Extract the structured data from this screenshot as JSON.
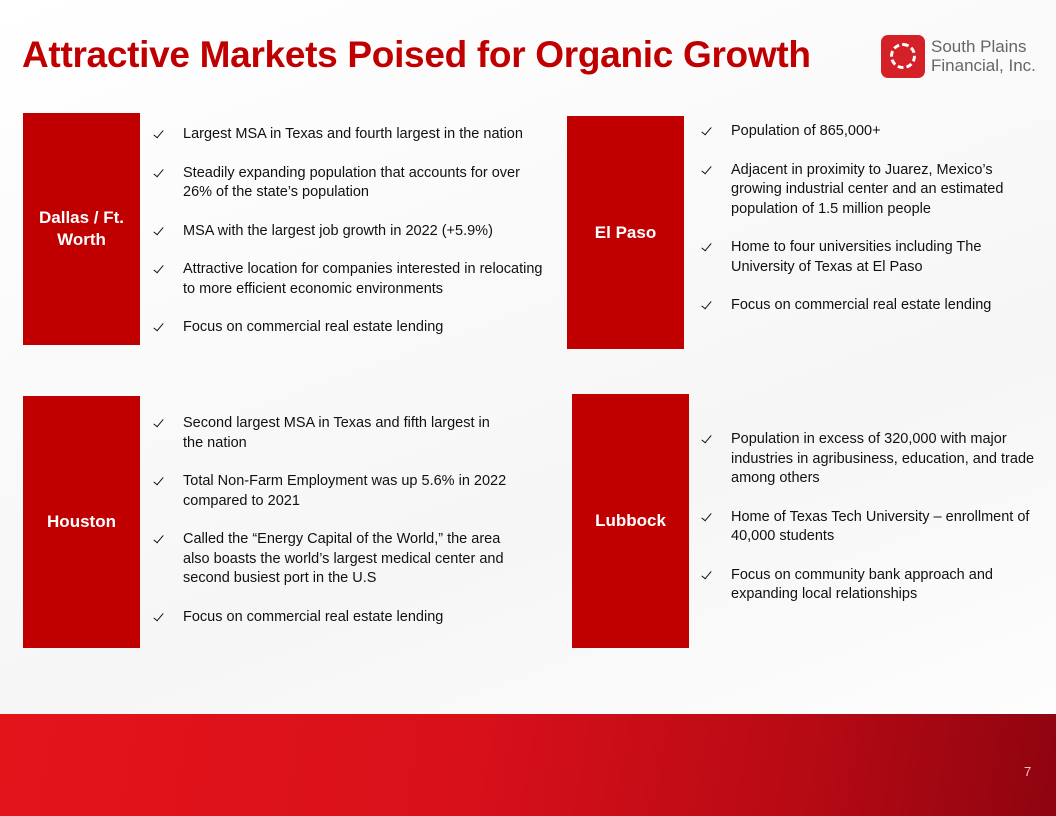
{
  "header": {
    "title": "Attractive Markets Poised for Organic Growth"
  },
  "logo": {
    "line1": "South Plains",
    "line2": "Financial, Inc."
  },
  "sections": [
    {
      "name": "Dallas / Ft. Worth",
      "bullets": [
        "Largest MSA in Texas and fourth largest in the nation",
        "Steadily expanding population that accounts for over 26% of the state’s population",
        "MSA with the largest job growth in 2022 (+5.9%)",
        "Attractive location for companies interested in relocating to more efficient economic environments",
        "Focus on commercial real estate lending"
      ]
    },
    {
      "name": "El Paso",
      "bullets": [
        "Population of 865,000+",
        "Adjacent in proximity to Juarez, Mexico’s growing industrial center and an estimated population of 1.5 million people",
        "Home to four universities including The University of Texas at El Paso",
        "Focus on commercial real estate lending"
      ]
    },
    {
      "name": "Houston",
      "bullets": [
        "Second largest MSA in Texas and fifth largest in the nation",
        "Total Non-Farm Employment was up 5.6% in 2022 compared to 2021",
        "Called the “Energy Capital of the World,” the area also boasts the world’s largest medical center and second busiest port in the U.S",
        "Focus on commercial real estate lending"
      ]
    },
    {
      "name": "Lubbock",
      "bullets": [
        "Population in excess of 320,000 with major industries in agribusiness, education, and trade among others",
        "Home of Texas Tech University – enrollment of 40,000 students",
        "Focus on community bank approach and expanding local relationships"
      ]
    }
  ],
  "page_number": "7"
}
